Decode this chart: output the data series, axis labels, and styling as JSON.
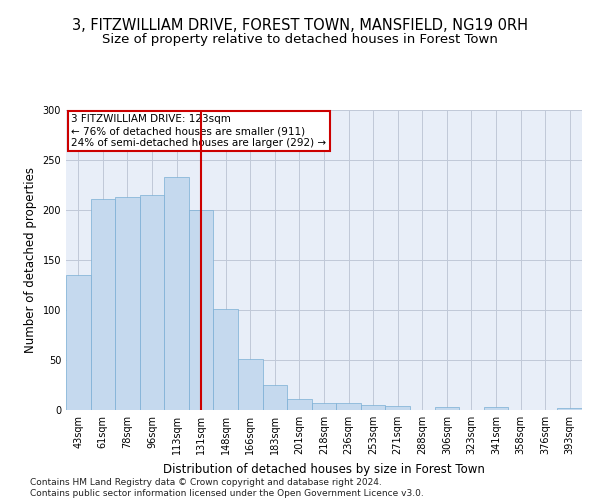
{
  "title_line1": "3, FITZWILLIAM DRIVE, FOREST TOWN, MANSFIELD, NG19 0RH",
  "title_line2": "Size of property relative to detached houses in Forest Town",
  "xlabel": "Distribution of detached houses by size in Forest Town",
  "ylabel": "Number of detached properties",
  "footnote": "Contains HM Land Registry data © Crown copyright and database right 2024.\nContains public sector information licensed under the Open Government Licence v3.0.",
  "categories": [
    "43sqm",
    "61sqm",
    "78sqm",
    "96sqm",
    "113sqm",
    "131sqm",
    "148sqm",
    "166sqm",
    "183sqm",
    "201sqm",
    "218sqm",
    "236sqm",
    "253sqm",
    "271sqm",
    "288sqm",
    "306sqm",
    "323sqm",
    "341sqm",
    "358sqm",
    "376sqm",
    "393sqm"
  ],
  "values": [
    135,
    211,
    213,
    215,
    233,
    200,
    101,
    51,
    25,
    11,
    7,
    7,
    5,
    4,
    0,
    3,
    0,
    3,
    0,
    0,
    2
  ],
  "bar_color": "#c5d9ee",
  "bar_edge_color": "#7aaed4",
  "vline_x": 5.0,
  "vline_color": "#cc0000",
  "annotation_text": "3 FITZWILLIAM DRIVE: 123sqm\n← 76% of detached houses are smaller (911)\n24% of semi-detached houses are larger (292) →",
  "annotation_box_color": "white",
  "annotation_box_edge": "#cc0000",
  "ylim": [
    0,
    300
  ],
  "yticks": [
    0,
    50,
    100,
    150,
    200,
    250,
    300
  ],
  "bg_color": "#e8eef8",
  "grid_color": "#c0c8d8",
  "title_fontsize": 10.5,
  "subtitle_fontsize": 9.5,
  "axis_label_fontsize": 8.5,
  "tick_fontsize": 7,
  "annotation_fontsize": 7.5,
  "footnote_fontsize": 6.5
}
